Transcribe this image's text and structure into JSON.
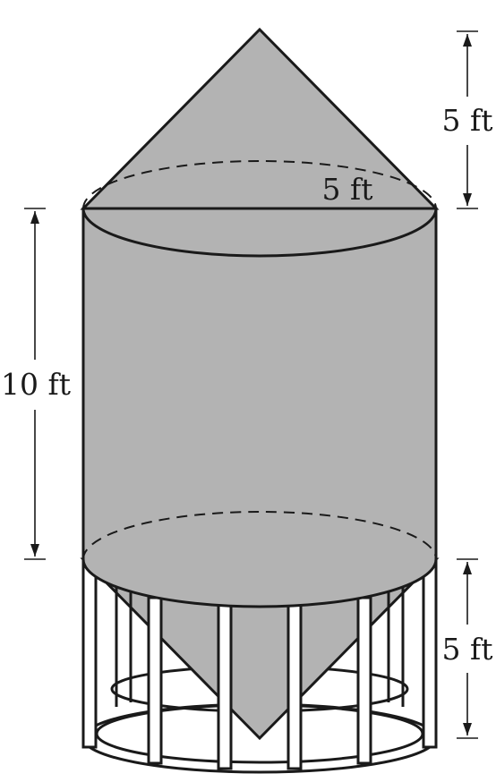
{
  "diagram": {
    "labels": {
      "cone_top_height": "5 ft",
      "radius": "5 ft",
      "cylinder_height": "10 ft",
      "cone_bottom_height": "5 ft"
    },
    "colors": {
      "fill": "#b3b3b3",
      "stroke": "#1a1a1a",
      "background": "#ffffff"
    }
  }
}
